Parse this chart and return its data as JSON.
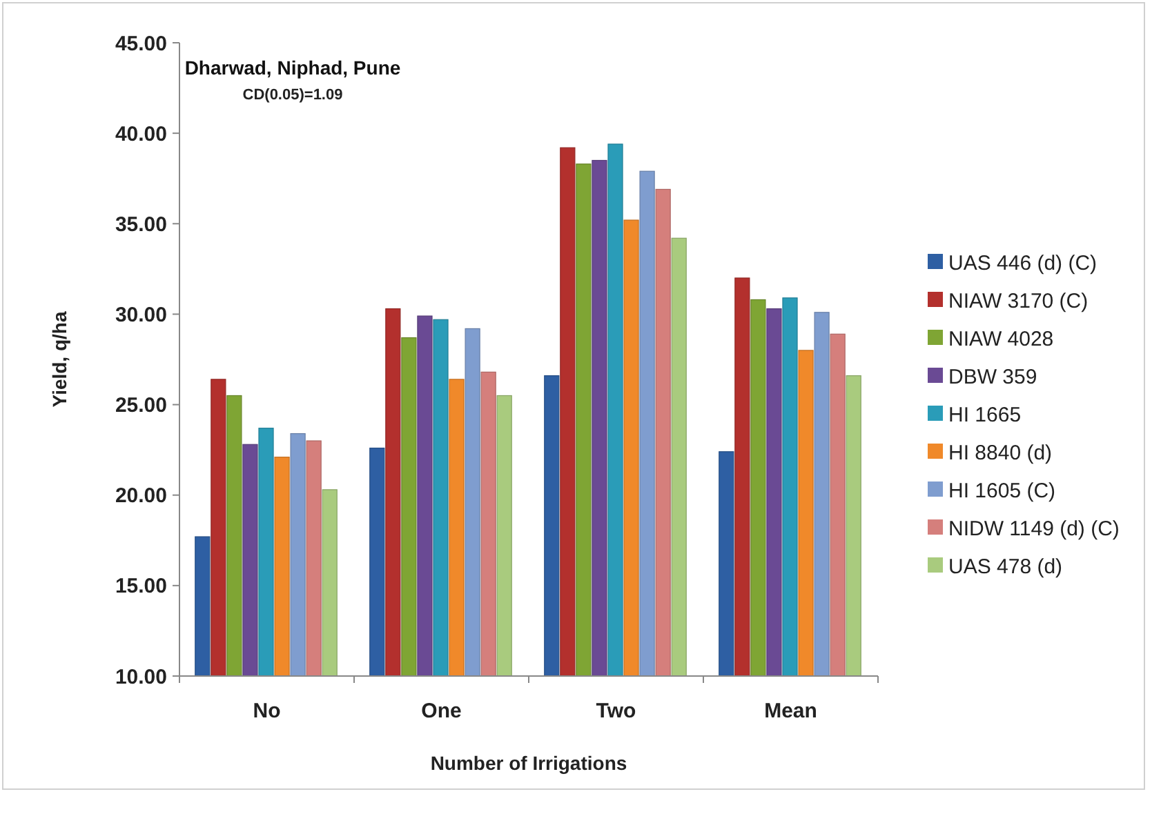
{
  "chart_data": {
    "type": "bar",
    "title": "Dharwad, Niphad, Pune",
    "subtitle": "CD(0.05)=1.09",
    "xlabel": "Number of Irrigations",
    "ylabel": "Yield, q/ha",
    "categories": [
      "No",
      "One",
      "Two",
      "Mean"
    ],
    "series": [
      {
        "name": "UAS 446 (d) (C)",
        "color": "#2e5fa3",
        "values": [
          17.7,
          22.6,
          26.6,
          22.4
        ]
      },
      {
        "name": "NIAW 3170 (C)",
        "color": "#b3302d",
        "values": [
          26.4,
          30.3,
          39.2,
          32.0
        ]
      },
      {
        "name": "NIAW 4028",
        "color": "#7fa534",
        "values": [
          25.5,
          28.7,
          38.3,
          30.8
        ]
      },
      {
        "name": "DBW 359",
        "color": "#6a4a94",
        "values": [
          22.8,
          29.9,
          38.5,
          30.3
        ]
      },
      {
        "name": "HI 1665",
        "color": "#2a9cb8",
        "values": [
          23.7,
          29.7,
          39.4,
          30.9
        ]
      },
      {
        "name": "HI 8840 (d)",
        "color": "#f0892a",
        "values": [
          22.1,
          26.4,
          35.2,
          28.0
        ]
      },
      {
        "name": "HI 1605 (C)",
        "color": "#7f9dcf",
        "values": [
          23.4,
          29.2,
          37.9,
          30.1
        ]
      },
      {
        "name": "NIDW 1149 (d) (C)",
        "color": "#d57f7c",
        "values": [
          23.0,
          26.8,
          36.9,
          28.9
        ]
      },
      {
        "name": "UAS 478 (d)",
        "color": "#a9cb7e",
        "values": [
          20.3,
          25.5,
          34.2,
          26.6
        ]
      }
    ],
    "ylim": [
      10,
      45
    ],
    "yticks": [
      {
        "value": 10,
        "label": "10.00"
      },
      {
        "value": 15,
        "label": "15.00"
      },
      {
        "value": 20,
        "label": "20.00"
      },
      {
        "value": 25,
        "label": "25.00"
      },
      {
        "value": 30,
        "label": "30.00"
      },
      {
        "value": 35,
        "label": "35.00"
      },
      {
        "value": 40,
        "label": "40.00"
      },
      {
        "value": 45,
        "label": "45.00"
      }
    ],
    "grid": false,
    "legend": "right"
  }
}
